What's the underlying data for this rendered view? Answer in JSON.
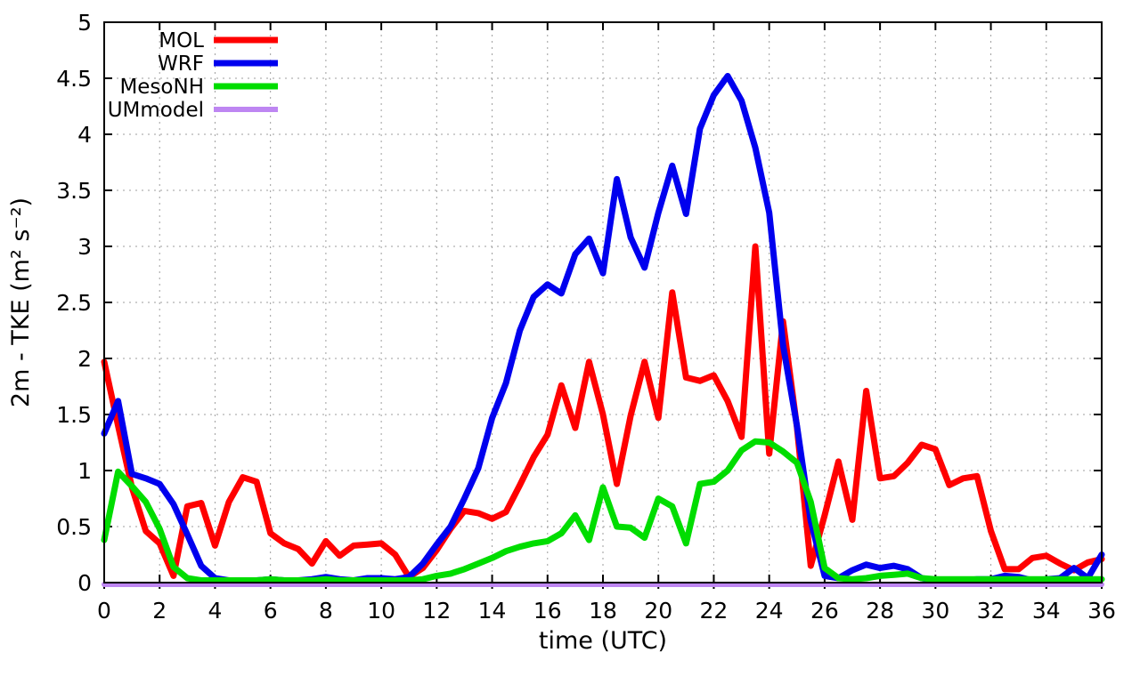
{
  "figure": {
    "background": "#ffffff"
  },
  "chart_data": {
    "type": "line",
    "title": "",
    "xlabel": "time (UTC)",
    "ylabel": "2m - TKE (m² s⁻²)",
    "xlim": [
      0,
      36
    ],
    "ylim": [
      0,
      5
    ],
    "xticks": [
      0,
      2,
      4,
      6,
      8,
      10,
      12,
      14,
      16,
      18,
      20,
      22,
      24,
      26,
      28,
      30,
      32,
      34,
      36
    ],
    "yticks": [
      0,
      0.5,
      1,
      1.5,
      2,
      2.5,
      3,
      3.5,
      4,
      4.5,
      5
    ],
    "grid": true,
    "legend_position": "top-left",
    "x": [
      0,
      0.5,
      1,
      1.5,
      2,
      2.5,
      3,
      3.5,
      4,
      4.5,
      5,
      5.5,
      6,
      6.5,
      7,
      7.5,
      8,
      8.5,
      9,
      9.5,
      10,
      10.5,
      11,
      11.5,
      12,
      12.5,
      13,
      13.5,
      14,
      14.5,
      15,
      15.5,
      16,
      16.5,
      17,
      17.5,
      18,
      18.5,
      19,
      19.5,
      20,
      20.5,
      21,
      21.5,
      22,
      22.5,
      23,
      23.5,
      24,
      24.5,
      25,
      25.5,
      26,
      26.5,
      27,
      27.5,
      28,
      28.5,
      29,
      29.5,
      30,
      30.5,
      31,
      31.5,
      32,
      32.5,
      33,
      33.5,
      34,
      34.5,
      35,
      35.5,
      36
    ],
    "series": [
      {
        "name": "MOL",
        "color": "#ff0000",
        "values": [
          1.97,
          1.4,
          0.85,
          0.46,
          0.35,
          0.06,
          0.68,
          0.71,
          0.33,
          0.72,
          0.94,
          0.9,
          0.44,
          0.35,
          0.3,
          0.17,
          0.37,
          0.24,
          0.33,
          0.34,
          0.35,
          0.25,
          0.05,
          0.13,
          0.29,
          0.48,
          0.64,
          0.62,
          0.57,
          0.63,
          0.87,
          1.12,
          1.32,
          1.76,
          1.38,
          1.97,
          1.5,
          0.88,
          1.49,
          1.97,
          1.47,
          2.59,
          1.83,
          1.8,
          1.85,
          1.62,
          1.3,
          3.0,
          1.15,
          2.33,
          1.39,
          0.15,
          0.6,
          1.08,
          0.56,
          1.71,
          0.93,
          0.95,
          1.07,
          1.23,
          1.19,
          0.87,
          0.93,
          0.95,
          0.46,
          0.12,
          0.12,
          0.22,
          0.24,
          0.17,
          0.11,
          0.18,
          0.21
        ]
      },
      {
        "name": "WRF",
        "color": "#0000ee",
        "values": [
          1.33,
          1.62,
          0.97,
          0.93,
          0.88,
          0.7,
          0.43,
          0.15,
          0.04,
          0.02,
          0.02,
          0.02,
          0.03,
          0.02,
          0.02,
          0.03,
          0.05,
          0.03,
          0.02,
          0.04,
          0.04,
          0.03,
          0.05,
          0.17,
          0.34,
          0.5,
          0.75,
          1.02,
          1.47,
          1.78,
          2.25,
          2.55,
          2.66,
          2.58,
          2.93,
          3.07,
          2.76,
          3.6,
          3.08,
          2.81,
          3.3,
          3.72,
          3.29,
          4.05,
          4.35,
          4.52,
          4.3,
          3.88,
          3.3,
          2.12,
          1.4,
          0.55,
          0.06,
          0.04,
          0.11,
          0.16,
          0.13,
          0.15,
          0.12,
          0.04,
          0.02,
          0.02,
          0.02,
          0.03,
          0.03,
          0.06,
          0.05,
          0.02,
          0.03,
          0.04,
          0.13,
          0.04,
          0.25
        ]
      },
      {
        "name": "MesoNH",
        "color": "#00dd00",
        "values": [
          0.38,
          0.99,
          0.86,
          0.72,
          0.48,
          0.14,
          0.04,
          0.02,
          0.02,
          0.02,
          0.02,
          0.02,
          0.03,
          0.02,
          0.02,
          0.02,
          0.03,
          0.02,
          0.02,
          0.02,
          0.02,
          0.02,
          0.02,
          0.03,
          0.06,
          0.08,
          0.12,
          0.17,
          0.22,
          0.28,
          0.32,
          0.35,
          0.37,
          0.44,
          0.6,
          0.38,
          0.85,
          0.5,
          0.49,
          0.4,
          0.75,
          0.68,
          0.35,
          0.88,
          0.9,
          1.0,
          1.18,
          1.26,
          1.25,
          1.17,
          1.07,
          0.72,
          0.13,
          0.04,
          0.03,
          0.04,
          0.06,
          0.07,
          0.08,
          0.04,
          0.03,
          0.03,
          0.03,
          0.03,
          0.03,
          0.03,
          0.03,
          0.03,
          0.03,
          0.03,
          0.03,
          0.03,
          0.03
        ]
      },
      {
        "name": "UMmodel",
        "color": "#be86f2",
        "values": [
          0,
          0,
          0,
          0,
          0,
          0,
          0,
          0,
          0,
          0,
          0,
          0,
          0,
          0,
          0,
          0,
          0,
          0,
          0,
          0,
          0,
          0,
          0,
          0,
          0,
          0,
          0,
          0,
          0,
          0,
          0,
          0,
          0,
          0,
          0,
          0,
          0,
          0,
          0,
          0,
          0,
          0,
          0,
          0,
          0,
          0,
          0,
          0,
          0,
          0,
          0,
          0,
          0,
          0,
          0,
          0,
          0,
          0,
          0,
          0,
          0,
          0,
          0,
          0,
          0,
          0,
          0,
          0,
          0,
          0,
          0,
          0,
          0
        ]
      }
    ]
  }
}
